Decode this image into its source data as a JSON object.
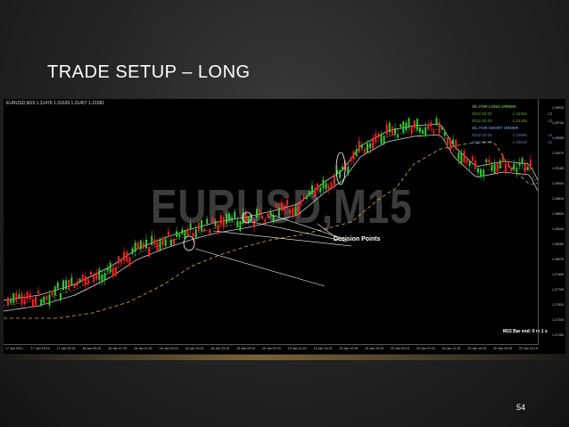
{
  "slide": {
    "title": "TRADE SETUP – LONG",
    "page_number": "54"
  },
  "chart": {
    "header": "EURUSD,M15  1.31476 1.31639 1.31457 1.31581",
    "watermark": "EURUSD,M15",
    "annotation": "Decision Points",
    "legend": {
      "long_header": "S/L FOR LONG ORDER",
      "long_rows": [
        {
          "date": "2012.02.03",
          "price": "1.31344",
          "n": "13"
        },
        {
          "date": "2012.02.03",
          "price": "1.31435",
          "n": "13"
        }
      ],
      "short_header": "S/L FOR SHORT ORDER",
      "short_rows": [
        {
          "date": "2012.02.03",
          "price": "1.31606",
          "n": "13"
        },
        {
          "date": "2012.02.03",
          "price": "1.31613",
          "n": "13"
        }
      ],
      "long_color": "#6fae3a",
      "short_color": "#5a86c6"
    },
    "bar_end": "M15 Bar end: 0 m 1 s",
    "price_labels": [
      "1.29925",
      "1.29740",
      "1.29555",
      "1.29370",
      "1.29185",
      "1.29000",
      "1.28815",
      "1.28630",
      "1.28445",
      "1.28260",
      "1.28075",
      "1.27890",
      "1.27705",
      "1.27520",
      "1.27335",
      "1.27150"
    ],
    "time_labels": [
      "17 Jan 2012",
      "17 Jan 19:15",
      "17 Jan 23:15",
      "18 Jan 03:15",
      "18 Jan 07:15",
      "18 Jan 11:15",
      "18 Jan 15:15",
      "18 Jan 19:15",
      "18 Jan 23:15",
      "19 Jan 03:15",
      "19 Jan 07:15",
      "19 Jan 11:15",
      "19 Jan 15:15",
      "19 Jan 19:15",
      "19 Jan 23:15",
      "20 Jan 03:15",
      "20 Jan 07:15",
      "20 Jan 11:15",
      "20 Jan 15:15",
      "20 Jan 19:15",
      "20 Jan 23:15"
    ],
    "colors": {
      "up": "#33cc33",
      "down": "#ff2020",
      "background": "#000000"
    }
  }
}
